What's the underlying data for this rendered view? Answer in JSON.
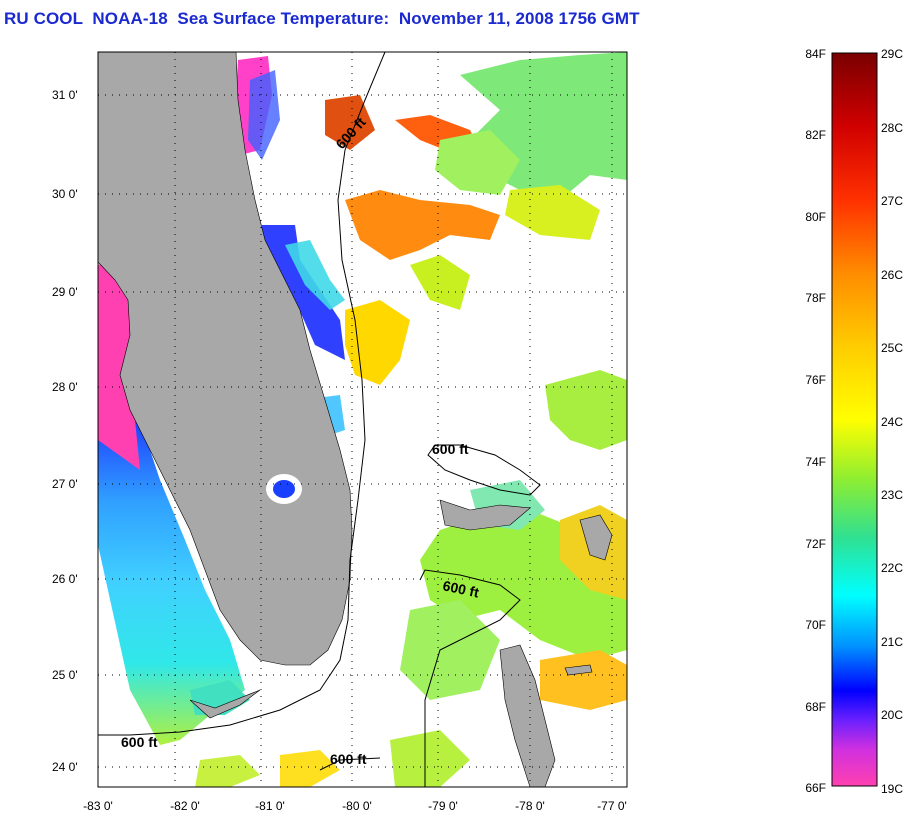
{
  "title": "RU COOL  NOAA-18  Sea Surface Temperature:  November 11, 2008 1756 GMT",
  "axes": {
    "lat_labels": [
      "31 0'",
      "30 0'",
      "29 0'",
      "28 0'",
      "27 0'",
      "26 0'",
      "25 0'",
      "24 0'"
    ],
    "lon_labels": [
      "-83 0'",
      "-82 0'",
      "-81 0'",
      "-80 0'",
      "-79 0'",
      "-78 0'",
      "-77 0'"
    ]
  },
  "colorbar": {
    "fahrenheit_labels": [
      "84F",
      "82F",
      "80F",
      "78F",
      "76F",
      "74F",
      "72F",
      "70F",
      "68F",
      "66F"
    ],
    "celsius_labels": [
      "29C",
      "28C",
      "27C",
      "26C",
      "25C",
      "24C",
      "23C",
      "22C",
      "21C",
      "20C",
      "19C"
    ],
    "colors": [
      "#8b0000",
      "#ff0000",
      "#ff7a00",
      "#ffd000",
      "#ffff00",
      "#90ee30",
      "#30e0a0",
      "#00ffff",
      "#0080ff",
      "#0000ff",
      "#8020ff",
      "#ff40c0"
    ]
  },
  "contours": {
    "label": "600 ft",
    "labels": [
      "600 ft",
      "600 ft",
      "600 ft",
      "600 ft",
      "600 ft"
    ]
  },
  "colors": {
    "land": "#a8a8a8",
    "title": "#1a2ad0",
    "grid": "#000000"
  }
}
